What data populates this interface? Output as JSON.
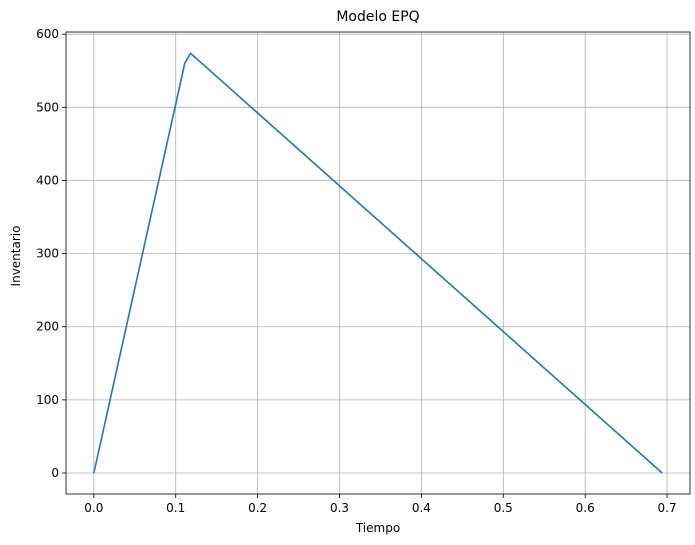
{
  "chart_data": {
    "type": "line",
    "title": "Modelo EPQ",
    "xlabel": "Tiempo",
    "ylabel": "Inventario",
    "xlim": [
      -0.034,
      0.728
    ],
    "ylim": [
      -28.7,
      603
    ],
    "grid": true,
    "xticks": [
      0.0,
      0.1,
      0.2,
      0.3,
      0.4,
      0.5,
      0.6,
      0.7
    ],
    "xtick_labels": [
      "0.0",
      "0.1",
      "0.2",
      "0.3",
      "0.4",
      "0.5",
      "0.6",
      "0.7"
    ],
    "yticks": [
      0,
      100,
      200,
      300,
      400,
      500,
      600
    ],
    "ytick_labels": [
      "0",
      "100",
      "200",
      "300",
      "400",
      "500",
      "600"
    ],
    "series": [
      {
        "color": "#1f77b4",
        "x": [
          0.0,
          0.111,
          0.118,
          0.694
        ],
        "y": [
          0,
          560,
          574,
          0
        ]
      }
    ]
  }
}
